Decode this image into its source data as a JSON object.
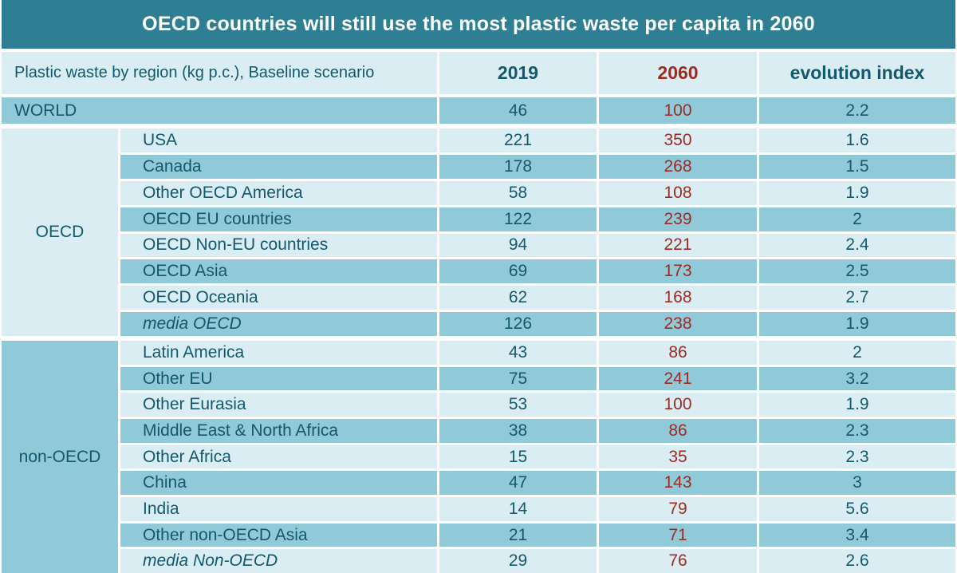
{
  "title": "OECD countries will still use the most plastic waste per capita in 2060",
  "header": {
    "label": "Plastic waste by region (kg p.c.), Baseline scenario",
    "col_2019": "2019",
    "col_2060": "2060",
    "col_index": "evolution index"
  },
  "chart_data": {
    "type": "table",
    "title": "OECD countries will still use the most plastic waste per capita in 2060",
    "subtitle": "Plastic waste by region (kg p.c.), Baseline scenario",
    "columns": [
      "Plastic waste by region (kg p.c.), Baseline scenario",
      "2019",
      "2060",
      "evolution index"
    ],
    "world": {
      "region": "WORLD",
      "y2019": 46,
      "y2060": 100,
      "index": 2.2
    },
    "groups": [
      {
        "label": "OECD",
        "rows": [
          {
            "region": "USA",
            "y2019": 221,
            "y2060": 350,
            "index": 1.6
          },
          {
            "region": "Canada",
            "y2019": 178,
            "y2060": 268,
            "index": 1.5
          },
          {
            "region": "Other OECD America",
            "y2019": 58,
            "y2060": 108,
            "index": 1.9
          },
          {
            "region": "OECD EU countries",
            "y2019": 122,
            "y2060": 239,
            "index": 2
          },
          {
            "region": "OECD Non-EU countries",
            "y2019": 94,
            "y2060": 221,
            "index": 2.4
          },
          {
            "region": "OECD Asia",
            "y2019": 69,
            "y2060": 173,
            "index": 2.5
          },
          {
            "region": "OECD Oceania",
            "y2019": 62,
            "y2060": 168,
            "index": 2.7
          },
          {
            "region": "media OECD",
            "y2019": 126,
            "y2060": 238,
            "index": 1.9
          }
        ]
      },
      {
        "label": "non-OECD",
        "rows": [
          {
            "region": "Latin America",
            "y2019": 43,
            "y2060": 86,
            "index": 2
          },
          {
            "region": "Other EU",
            "y2019": 75,
            "y2060": 241,
            "index": 3.2
          },
          {
            "region": "Other Eurasia",
            "y2019": 53,
            "y2060": 100,
            "index": 1.9
          },
          {
            "region": "Middle East & North Africa",
            "y2019": 38,
            "y2060": 86,
            "index": 2.3
          },
          {
            "region": "Other Africa",
            "y2019": 15,
            "y2060": 35,
            "index": 2.3
          },
          {
            "region": "China",
            "y2019": 47,
            "y2060": 143,
            "index": 3
          },
          {
            "region": "India",
            "y2019": 14,
            "y2060": 79,
            "index": 5.6
          },
          {
            "region": "Other non-OECD Asia",
            "y2019": 21,
            "y2060": 71,
            "index": 3.4
          },
          {
            "region": "media Non-OECD",
            "y2019": 29,
            "y2060": 76,
            "index": 2.6
          }
        ]
      }
    ],
    "layout_hints": {
      "grid": "white 3px separators",
      "banding": "alternating light/dark blue rows"
    }
  },
  "colors": {
    "title_bg": "#2e7f93",
    "row_light": "#d9edf2",
    "row_dark": "#90c9d8",
    "text_teal": "#14586e",
    "text_red": "#9e2a23",
    "grid": "#ffffff"
  }
}
